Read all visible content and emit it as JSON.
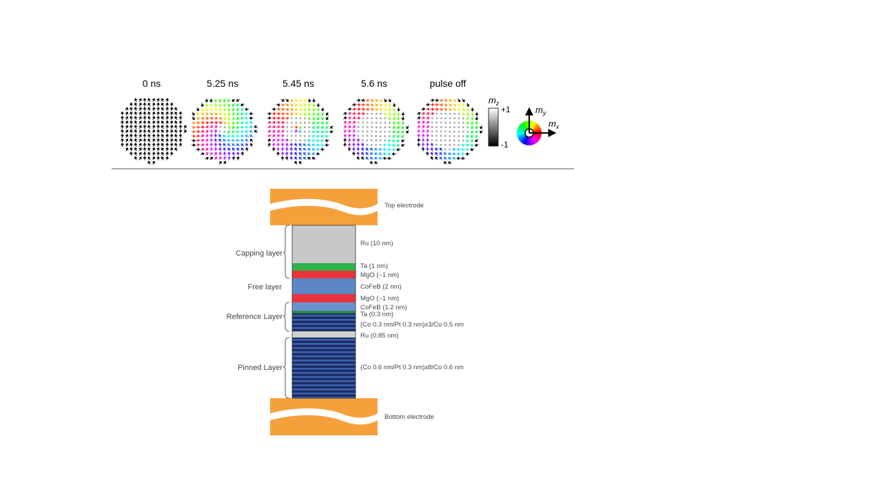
{
  "snapshots": {
    "labels": [
      "0 ns",
      "5.25 ns",
      "5.45 ns",
      "5.6 ns",
      "pulse off"
    ]
  },
  "colorbar": {
    "symbol": "m",
    "subscript": "z",
    "max_label": "+1",
    "min_label": "-1"
  },
  "color_wheel": {
    "y_symbol": "m",
    "y_subscript": "y",
    "x_symbol": "m",
    "x_subscript": "x"
  },
  "stack": {
    "electrodes": [
      "Top electrode",
      "Bottom electrode"
    ],
    "layers": [
      "Ru (10 nm)",
      "Ta (1 nm)",
      "MgO (~1 nm)",
      "CoFeB (2 nm)",
      "MgO (~1 nm)",
      "CoFeB (1.2 nm)",
      "Ta (0.3 nm)",
      "(Co 0.3 nm/Pt 0.3 nm)x3/Co 0.5 nm",
      "Ru (0.85 nm)",
      "(Co 0.6 nm/Pt 0.3 nm)x8/Co 0.6 nm"
    ],
    "groups": [
      "Capping layer",
      "Free layer",
      "Reference Layer",
      "Pinned Layer"
    ]
  }
}
